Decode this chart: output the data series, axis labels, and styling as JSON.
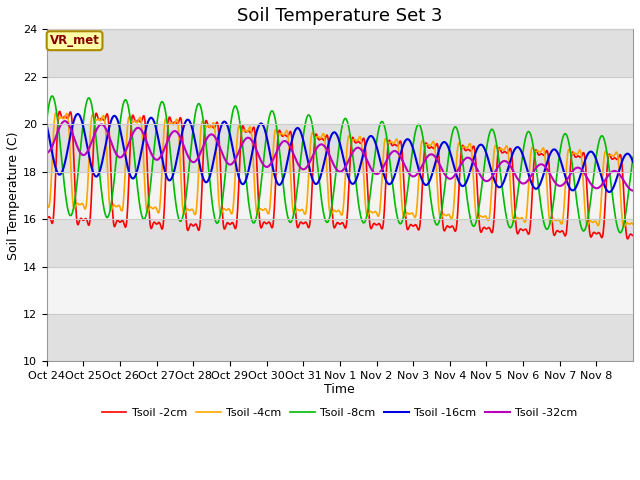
{
  "title": "Soil Temperature Set 3",
  "xlabel": "Time",
  "ylabel": "Soil Temperature (C)",
  "ylim": [
    10,
    24
  ],
  "annotation": "VR_met",
  "xtick_labels": [
    "Oct 24",
    "Oct 25",
    "Oct 26",
    "Oct 27",
    "Oct 28",
    "Oct 29",
    "Oct 30",
    "Oct 31",
    "Nov 1",
    "Nov 2",
    "Nov 3",
    "Nov 4",
    "Nov 5",
    "Nov 6",
    "Nov 7",
    "Nov 8"
  ],
  "series_labels": [
    "Tsoil -2cm",
    "Tsoil -4cm",
    "Tsoil -8cm",
    "Tsoil -16cm",
    "Tsoil -32cm"
  ],
  "series_colors": [
    "#ff0000",
    "#ffa500",
    "#00bb00",
    "#0000dd",
    "#bb00bb"
  ],
  "background_color": "#ffffff",
  "plot_bg_color": "#e0e0e0",
  "title_fontsize": 13,
  "axis_fontsize": 9,
  "tick_fontsize": 8
}
